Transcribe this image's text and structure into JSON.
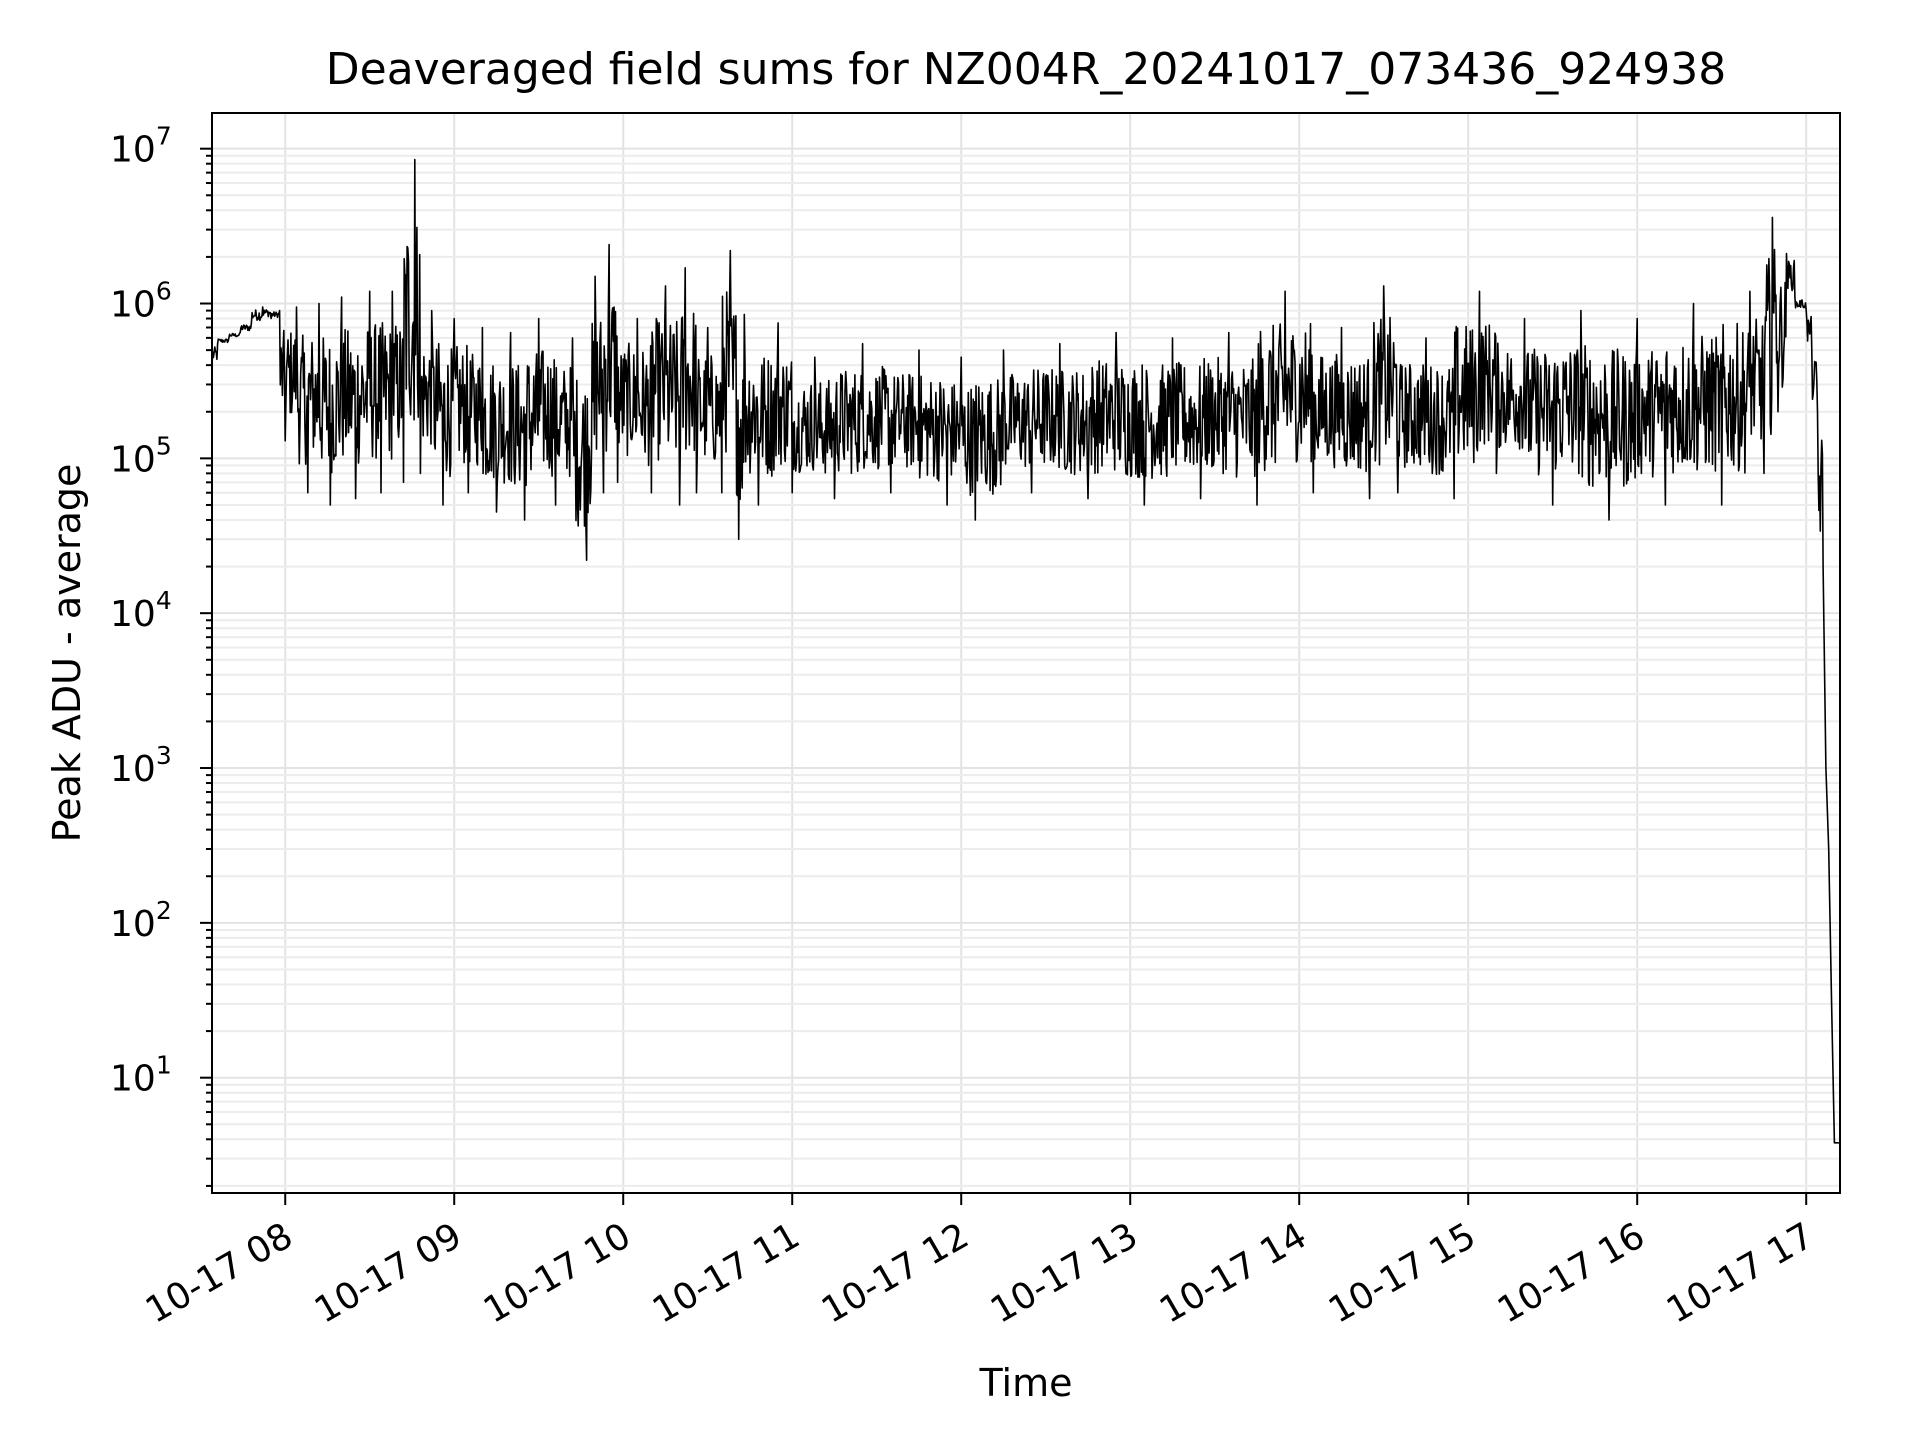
{
  "chart_data": {
    "type": "line",
    "title": "Deaveraged field sums for NZ004R_20241017_073436_924938",
    "xlabel": "Time",
    "ylabel": "Peak ADU - average",
    "yscale": "log",
    "grid": true,
    "ylim": [
      1.8,
      17000000
    ],
    "xlim": [
      "10-17 07:34",
      "10-17 17:12"
    ],
    "x_tick_labels": [
      "10-17 08",
      "10-17 09",
      "10-17 10",
      "10-17 11",
      "10-17 12",
      "10-17 13",
      "10-17 14",
      "10-17 15",
      "10-17 16",
      "10-17 17"
    ],
    "y_tick_labels": [
      {
        "base": "10",
        "exp": "1"
      },
      {
        "base": "10",
        "exp": "2"
      },
      {
        "base": "10",
        "exp": "3"
      },
      {
        "base": "10",
        "exp": "4"
      },
      {
        "base": "10",
        "exp": "5"
      },
      {
        "base": "10",
        "exp": "6"
      },
      {
        "base": "10",
        "exp": "7"
      }
    ],
    "series": [
      {
        "color": "#000000",
        "points": [
          [
            "10-17 07:34",
            400000
          ],
          [
            "10-17 07:36",
            550000
          ],
          [
            "10-17 07:40",
            600000
          ],
          [
            "10-17 07:44",
            650000
          ],
          [
            "10-17 07:48",
            750000
          ],
          [
            "10-17 07:52",
            950000
          ],
          [
            "10-17 07:55",
            800000
          ],
          [
            "10-17 07:58",
            900000
          ],
          [
            "10-17 08:00",
            130000
          ],
          [
            "10-17 08:04",
            950000
          ],
          [
            "10-17 08:08",
            60000
          ],
          [
            "10-17 08:12",
            1000000
          ],
          [
            "10-17 08:16",
            50000
          ],
          [
            "10-17 08:20",
            1100000
          ],
          [
            "10-17 08:25",
            55000
          ],
          [
            "10-17 08:30",
            1200000
          ],
          [
            "10-17 08:34",
            60000
          ],
          [
            "10-17 08:38",
            1200000
          ],
          [
            "10-17 08:42",
            70000
          ],
          [
            "10-17 08:46",
            8500000
          ],
          [
            "10-17 08:48",
            80000
          ],
          [
            "10-17 08:52",
            900000
          ],
          [
            "10-17 08:56",
            50000
          ],
          [
            "10-17 09:00",
            800000
          ],
          [
            "10-17 09:05",
            60000
          ],
          [
            "10-17 09:10",
            700000
          ],
          [
            "10-17 09:15",
            45000
          ],
          [
            "10-17 09:20",
            650000
          ],
          [
            "10-17 09:25",
            40000
          ],
          [
            "10-17 09:30",
            800000
          ],
          [
            "10-17 09:36",
            50000
          ],
          [
            "10-17 09:42",
            600000
          ],
          [
            "10-17 09:47",
            22000
          ],
          [
            "10-17 09:50",
            1500000
          ],
          [
            "10-17 09:53",
            60000
          ],
          [
            "10-17 09:55",
            2400000
          ],
          [
            "10-17 09:58",
            70000
          ],
          [
            "10-17 10:05",
            800000
          ],
          [
            "10-17 10:10",
            60000
          ],
          [
            "10-17 10:15",
            1300000
          ],
          [
            "10-17 10:20",
            50000
          ],
          [
            "10-17 10:22",
            1700000
          ],
          [
            "10-17 10:26",
            60000
          ],
          [
            "10-17 10:30",
            700000
          ],
          [
            "10-17 10:35",
            60000
          ],
          [
            "10-17 10:38",
            2200000
          ],
          [
            "10-17 10:41",
            30000
          ],
          [
            "10-17 10:43",
            850000
          ],
          [
            "10-17 10:48",
            50000
          ],
          [
            "10-17 10:55",
            750000
          ],
          [
            "10-17 11:00",
            60000
          ],
          [
            "10-17 11:08",
            450000
          ],
          [
            "10-17 11:15",
            55000
          ],
          [
            "10-17 11:25",
            550000
          ],
          [
            "10-17 11:35",
            60000
          ],
          [
            "10-17 11:45",
            500000
          ],
          [
            "10-17 11:55",
            50000
          ],
          [
            "10-17 12:00",
            450000
          ],
          [
            "10-17 12:05",
            40000
          ],
          [
            "10-17 12:15",
            500000
          ],
          [
            "10-17 12:25",
            60000
          ],
          [
            "10-17 12:35",
            550000
          ],
          [
            "10-17 12:45",
            55000
          ],
          [
            "10-17 12:55",
            650000
          ],
          [
            "10-17 13:05",
            50000
          ],
          [
            "10-17 13:15",
            600000
          ],
          [
            "10-17 13:25",
            55000
          ],
          [
            "10-17 13:35",
            650000
          ],
          [
            "10-17 13:45",
            50000
          ],
          [
            "10-17 13:55",
            1200000
          ],
          [
            "10-17 14:05",
            60000
          ],
          [
            "10-17 14:15",
            700000
          ],
          [
            "10-17 14:25",
            55000
          ],
          [
            "10-17 14:30",
            1300000
          ],
          [
            "10-17 14:35",
            60000
          ],
          [
            "10-17 14:45",
            600000
          ],
          [
            "10-17 14:55",
            55000
          ],
          [
            "10-17 15:04",
            1200000
          ],
          [
            "10-17 15:10",
            80000
          ],
          [
            "10-17 15:20",
            800000
          ],
          [
            "10-17 15:30",
            50000
          ],
          [
            "10-17 15:40",
            900000
          ],
          [
            "10-17 15:50",
            40000
          ],
          [
            "10-17 16:00",
            800000
          ],
          [
            "10-17 16:10",
            50000
          ],
          [
            "10-17 16:20",
            1000000
          ],
          [
            "10-17 16:30",
            50000
          ],
          [
            "10-17 16:40",
            1200000
          ],
          [
            "10-17 16:45",
            80000
          ],
          [
            "10-17 16:48",
            3600000
          ],
          [
            "10-17 16:50",
            200000
          ],
          [
            "10-17 16:53",
            2100000
          ],
          [
            "10-17 16:56",
            1100000
          ],
          [
            "10-17 17:00",
            900000
          ],
          [
            "10-17 17:02",
            500000
          ],
          [
            "10-17 17:04",
            200000
          ],
          [
            "10-17 17:06",
            20000
          ],
          [
            "10-17 17:07",
            1000
          ],
          [
            "10-17 17:08",
            300
          ],
          [
            "10-17 17:09",
            30
          ],
          [
            "10-17 17:10",
            3.8
          ],
          [
            "10-17 17:12",
            3.8
          ]
        ]
      }
    ]
  }
}
